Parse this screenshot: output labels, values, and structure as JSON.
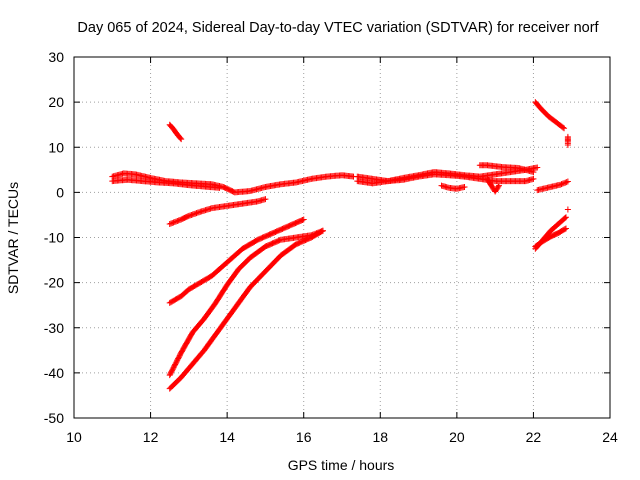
{
  "chart_data": {
    "type": "scatter",
    "title": "Day 065 of 2024, Sidereal Day-to-day VTEC variation (SDTVAR) for receiver norf",
    "xlabel": "GPS time / hours",
    "ylabel": "SDTVAR / TECUs",
    "xlim": [
      10,
      24
    ],
    "ylim": [
      -50,
      30
    ],
    "xticks": [
      10,
      12,
      14,
      16,
      18,
      20,
      22,
      24
    ],
    "yticks": [
      30,
      20,
      10,
      0,
      -10,
      -20,
      -30,
      -40,
      -50
    ],
    "grid": true,
    "legend": "none",
    "marker": "+",
    "series_color": "#ff0000",
    "series": [
      {
        "x": [
          11.0,
          11.3,
          11.6,
          12.0,
          12.4,
          12.8,
          13.2,
          13.6,
          13.9,
          14.2,
          14.6,
          15.0,
          15.4,
          15.8,
          16.2,
          16.6,
          17.0,
          17.3
        ],
        "y": [
          3.5,
          4.2,
          4.0,
          3.2,
          2.5,
          2.2,
          2.0,
          1.8,
          1.2,
          0.0,
          0.3,
          1.2,
          1.8,
          2.2,
          3.0,
          3.5,
          3.8,
          3.5
        ]
      },
      {
        "x": [
          11.0,
          11.4,
          11.8,
          12.2,
          12.6,
          13.0,
          13.4,
          13.8
        ],
        "y": [
          2.5,
          2.8,
          2.5,
          2.2,
          2.0,
          1.6,
          1.3,
          1.0
        ]
      },
      {
        "x": [
          12.5,
          12.6,
          12.7,
          12.8
        ],
        "y": [
          15.0,
          14.0,
          12.8,
          11.8
        ]
      },
      {
        "x": [
          12.5,
          12.8,
          13.0,
          13.3,
          13.6,
          14.0,
          14.4,
          14.8,
          15.0
        ],
        "y": [
          -7.0,
          -6.0,
          -5.2,
          -4.3,
          -3.5,
          -3.0,
          -2.5,
          -2.0,
          -1.5
        ]
      },
      {
        "x": [
          12.5,
          12.8,
          13.0,
          13.3,
          13.6,
          14.0,
          14.4,
          14.8,
          15.2,
          15.6,
          16.0
        ],
        "y": [
          -24.5,
          -23.0,
          -21.5,
          -20.0,
          -18.5,
          -15.5,
          -12.5,
          -10.5,
          -9.0,
          -7.5,
          -6.0
        ]
      },
      {
        "x": [
          12.5,
          12.8,
          13.1,
          13.4,
          13.7,
          14.0,
          14.3,
          14.6,
          15.0,
          15.4,
          15.8,
          16.2,
          16.5
        ],
        "y": [
          -40.5,
          -35.5,
          -31.0,
          -28.0,
          -24.5,
          -20.5,
          -17.0,
          -14.5,
          -12.0,
          -10.5,
          -10.0,
          -9.5,
          -8.5
        ]
      },
      {
        "x": [
          12.5,
          12.8,
          13.1,
          13.4,
          13.7,
          14.0,
          14.3,
          14.6,
          15.0,
          15.4,
          15.8,
          16.2,
          16.5
        ],
        "y": [
          -43.5,
          -41.0,
          -38.0,
          -35.0,
          -31.5,
          -28.0,
          -24.5,
          -21.0,
          -17.5,
          -14.0,
          -11.5,
          -10.0,
          -8.5
        ]
      },
      {
        "x": [
          17.4,
          17.8,
          18.2,
          18.6,
          19.0,
          19.4,
          19.8,
          20.2,
          20.6,
          21.0,
          21.4,
          21.8,
          22.0
        ],
        "y": [
          3.5,
          3.0,
          2.5,
          2.8,
          3.5,
          4.0,
          3.8,
          3.5,
          3.0,
          2.5,
          2.5,
          2.5,
          3.0
        ]
      },
      {
        "x": [
          17.4,
          17.8,
          18.2,
          18.6,
          19.0,
          19.4,
          19.8,
          20.2,
          20.6,
          21.0,
          21.4,
          21.8,
          22.1
        ],
        "y": [
          2.5,
          2.0,
          2.5,
          3.2,
          3.8,
          4.5,
          4.2,
          3.8,
          3.5,
          4.0,
          4.5,
          5.0,
          5.5
        ]
      },
      {
        "x": [
          19.6,
          19.8,
          20.0,
          20.2
        ],
        "y": [
          1.5,
          1.0,
          0.8,
          1.2
        ]
      },
      {
        "x": [
          20.6,
          20.8,
          21.0,
          21.2,
          21.4,
          21.6,
          21.8,
          22.0
        ],
        "y": [
          6.0,
          6.0,
          5.8,
          5.6,
          5.5,
          5.4,
          5.0,
          4.5
        ]
      },
      {
        "x": [
          20.8,
          20.9,
          21.0,
          21.1
        ],
        "y": [
          3.0,
          1.5,
          0.2,
          1.5
        ]
      },
      {
        "x": [
          22.05,
          22.2,
          22.4,
          22.6,
          22.8
        ],
        "y": [
          20.0,
          18.5,
          16.8,
          15.5,
          14.2
        ]
      },
      {
        "x": [
          22.9,
          22.9,
          22.9
        ],
        "y": [
          12.3,
          11.2,
          10.5
        ]
      },
      {
        "x": [
          22.1,
          22.3,
          22.5,
          22.7,
          22.9
        ],
        "y": [
          0.5,
          0.9,
          1.3,
          1.7,
          2.4
        ]
      },
      {
        "x": [
          22.05,
          22.25,
          22.45,
          22.65,
          22.85
        ],
        "y": [
          -12.5,
          -10.5,
          -8.5,
          -7.0,
          -5.5
        ]
      },
      {
        "x": [
          22.05,
          22.25,
          22.45,
          22.65,
          22.85
        ],
        "y": [
          -12.0,
          -10.8,
          -9.8,
          -9.0,
          -8.0
        ]
      },
      {
        "x": [
          22.9
        ],
        "y": [
          -3.8
        ]
      }
    ]
  }
}
